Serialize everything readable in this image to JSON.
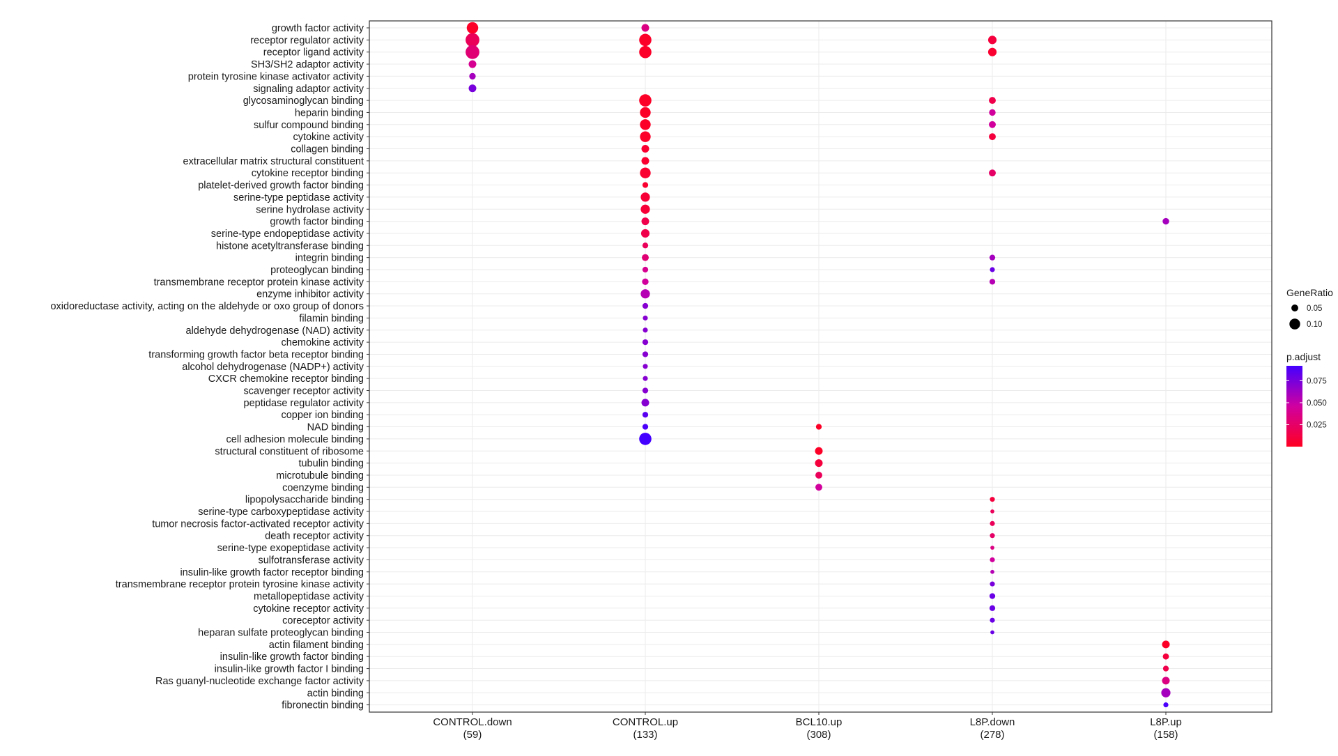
{
  "chart_data": {
    "type": "scatter",
    "x_categories": [
      {
        "label": "CONTROL.down",
        "count": "(59)"
      },
      {
        "label": "CONTROL.up",
        "count": "(133)"
      },
      {
        "label": "BCL10.up",
        "count": "(308)"
      },
      {
        "label": "L8P.down",
        "count": "(278)"
      },
      {
        "label": "L8P.up",
        "count": "(158)"
      }
    ],
    "y_terms": [
      "growth factor activity",
      "receptor regulator activity",
      "receptor ligand activity",
      "SH3/SH2 adaptor activity",
      "protein tyrosine kinase activator activity",
      "signaling adaptor activity",
      "glycosaminoglycan binding",
      "heparin binding",
      "sulfur compound binding",
      "cytokine activity",
      "collagen binding",
      "extracellular matrix structural constituent",
      "cytokine receptor binding",
      "platelet-derived growth factor binding",
      "serine-type peptidase activity",
      "serine hydrolase activity",
      "growth factor binding",
      "serine-type endopeptidase activity",
      "histone acetyltransferase binding",
      "integrin binding",
      "proteoglycan binding",
      "transmembrane receptor protein kinase activity",
      "enzyme inhibitor activity",
      "oxidoreductase activity, acting on the aldehyde or oxo group of donors",
      "filamin binding",
      "aldehyde dehydrogenase (NAD) activity",
      "chemokine activity",
      "transforming growth factor beta receptor binding",
      "alcohol dehydrogenase (NADP+) activity",
      "CXCR chemokine receptor binding",
      "scavenger receptor activity",
      "peptidase regulator activity",
      "copper ion binding",
      "NAD binding",
      "cell adhesion molecule binding",
      "structural constituent of ribosome",
      "tubulin binding",
      "microtubule binding",
      "coenzyme binding",
      "lipopolysaccharide binding",
      "serine-type carboxypeptidase activity",
      "tumor necrosis factor-activated receptor activity",
      "death receptor activity",
      "serine-type exopeptidase activity",
      "sulfotransferase activity",
      "insulin-like growth factor receptor binding",
      "transmembrane receptor protein tyrosine kinase activity",
      "metallopeptidase activity",
      "cytokine receptor activity",
      "coreceptor activity",
      "heparan sulfate proteoglycan binding",
      "actin filament binding",
      "insulin-like growth factor binding",
      "insulin-like growth factor I binding",
      "Ras guanyl-nucleotide exchange factor activity",
      "actin binding",
      "fibronectin binding"
    ],
    "points": [
      {
        "x": 0,
        "y": 0,
        "gene_ratio": 0.11,
        "p_adjust": 0.002
      },
      {
        "x": 0,
        "y": 1,
        "gene_ratio": 0.14,
        "p_adjust": 0.02
      },
      {
        "x": 0,
        "y": 2,
        "gene_ratio": 0.14,
        "p_adjust": 0.03
      },
      {
        "x": 0,
        "y": 3,
        "gene_ratio": 0.06,
        "p_adjust": 0.04
      },
      {
        "x": 0,
        "y": 4,
        "gene_ratio": 0.045,
        "p_adjust": 0.06
      },
      {
        "x": 0,
        "y": 5,
        "gene_ratio": 0.06,
        "p_adjust": 0.075
      },
      {
        "x": 1,
        "y": 0,
        "gene_ratio": 0.06,
        "p_adjust": 0.035
      },
      {
        "x": 1,
        "y": 1,
        "gene_ratio": 0.12,
        "p_adjust": 0.003
      },
      {
        "x": 1,
        "y": 2,
        "gene_ratio": 0.12,
        "p_adjust": 0.003
      },
      {
        "x": 1,
        "y": 6,
        "gene_ratio": 0.12,
        "p_adjust": 0.002
      },
      {
        "x": 1,
        "y": 7,
        "gene_ratio": 0.1,
        "p_adjust": 0.002
      },
      {
        "x": 1,
        "y": 8,
        "gene_ratio": 0.1,
        "p_adjust": 0.002
      },
      {
        "x": 1,
        "y": 9,
        "gene_ratio": 0.1,
        "p_adjust": 0.003
      },
      {
        "x": 1,
        "y": 10,
        "gene_ratio": 0.06,
        "p_adjust": 0.005
      },
      {
        "x": 1,
        "y": 11,
        "gene_ratio": 0.06,
        "p_adjust": 0.005
      },
      {
        "x": 1,
        "y": 12,
        "gene_ratio": 0.1,
        "p_adjust": 0.005
      },
      {
        "x": 1,
        "y": 13,
        "gene_ratio": 0.035,
        "p_adjust": 0.005
      },
      {
        "x": 1,
        "y": 14,
        "gene_ratio": 0.08,
        "p_adjust": 0.008
      },
      {
        "x": 1,
        "y": 15,
        "gene_ratio": 0.08,
        "p_adjust": 0.008
      },
      {
        "x": 1,
        "y": 16,
        "gene_ratio": 0.06,
        "p_adjust": 0.015
      },
      {
        "x": 1,
        "y": 17,
        "gene_ratio": 0.07,
        "p_adjust": 0.015
      },
      {
        "x": 1,
        "y": 18,
        "gene_ratio": 0.035,
        "p_adjust": 0.02
      },
      {
        "x": 1,
        "y": 19,
        "gene_ratio": 0.05,
        "p_adjust": 0.03
      },
      {
        "x": 1,
        "y": 20,
        "gene_ratio": 0.035,
        "p_adjust": 0.04
      },
      {
        "x": 1,
        "y": 21,
        "gene_ratio": 0.045,
        "p_adjust": 0.045
      },
      {
        "x": 1,
        "y": 22,
        "gene_ratio": 0.08,
        "p_adjust": 0.055
      },
      {
        "x": 1,
        "y": 23,
        "gene_ratio": 0.035,
        "p_adjust": 0.07
      },
      {
        "x": 1,
        "y": 24,
        "gene_ratio": 0.025,
        "p_adjust": 0.07
      },
      {
        "x": 1,
        "y": 25,
        "gene_ratio": 0.025,
        "p_adjust": 0.07
      },
      {
        "x": 1,
        "y": 26,
        "gene_ratio": 0.035,
        "p_adjust": 0.07
      },
      {
        "x": 1,
        "y": 27,
        "gene_ratio": 0.035,
        "p_adjust": 0.07
      },
      {
        "x": 1,
        "y": 28,
        "gene_ratio": 0.025,
        "p_adjust": 0.07
      },
      {
        "x": 1,
        "y": 29,
        "gene_ratio": 0.025,
        "p_adjust": 0.07
      },
      {
        "x": 1,
        "y": 30,
        "gene_ratio": 0.035,
        "p_adjust": 0.07
      },
      {
        "x": 1,
        "y": 31,
        "gene_ratio": 0.06,
        "p_adjust": 0.07
      },
      {
        "x": 1,
        "y": 32,
        "gene_ratio": 0.035,
        "p_adjust": 0.085
      },
      {
        "x": 1,
        "y": 33,
        "gene_ratio": 0.035,
        "p_adjust": 0.09
      },
      {
        "x": 1,
        "y": 34,
        "gene_ratio": 0.12,
        "p_adjust": 0.092
      },
      {
        "x": 2,
        "y": 33,
        "gene_ratio": 0.035,
        "p_adjust": 0.002
      },
      {
        "x": 2,
        "y": 35,
        "gene_ratio": 0.06,
        "p_adjust": 0.002
      },
      {
        "x": 2,
        "y": 36,
        "gene_ratio": 0.06,
        "p_adjust": 0.01
      },
      {
        "x": 2,
        "y": 37,
        "gene_ratio": 0.05,
        "p_adjust": 0.02
      },
      {
        "x": 2,
        "y": 38,
        "gene_ratio": 0.05,
        "p_adjust": 0.045
      },
      {
        "x": 3,
        "y": 1,
        "gene_ratio": 0.07,
        "p_adjust": 0.01
      },
      {
        "x": 3,
        "y": 2,
        "gene_ratio": 0.07,
        "p_adjust": 0.005
      },
      {
        "x": 3,
        "y": 6,
        "gene_ratio": 0.05,
        "p_adjust": 0.015
      },
      {
        "x": 3,
        "y": 7,
        "gene_ratio": 0.045,
        "p_adjust": 0.045
      },
      {
        "x": 3,
        "y": 8,
        "gene_ratio": 0.05,
        "p_adjust": 0.045
      },
      {
        "x": 3,
        "y": 9,
        "gene_ratio": 0.05,
        "p_adjust": 0.01
      },
      {
        "x": 3,
        "y": 12,
        "gene_ratio": 0.05,
        "p_adjust": 0.025
      },
      {
        "x": 3,
        "y": 19,
        "gene_ratio": 0.035,
        "p_adjust": 0.06
      },
      {
        "x": 3,
        "y": 20,
        "gene_ratio": 0.025,
        "p_adjust": 0.08
      },
      {
        "x": 3,
        "y": 21,
        "gene_ratio": 0.035,
        "p_adjust": 0.055
      },
      {
        "x": 3,
        "y": 39,
        "gene_ratio": 0.025,
        "p_adjust": 0.01
      },
      {
        "x": 3,
        "y": 40,
        "gene_ratio": 0.012,
        "p_adjust": 0.02
      },
      {
        "x": 3,
        "y": 41,
        "gene_ratio": 0.025,
        "p_adjust": 0.02
      },
      {
        "x": 3,
        "y": 42,
        "gene_ratio": 0.025,
        "p_adjust": 0.025
      },
      {
        "x": 3,
        "y": 43,
        "gene_ratio": 0.012,
        "p_adjust": 0.035
      },
      {
        "x": 3,
        "y": 44,
        "gene_ratio": 0.025,
        "p_adjust": 0.045
      },
      {
        "x": 3,
        "y": 45,
        "gene_ratio": 0.012,
        "p_adjust": 0.055
      },
      {
        "x": 3,
        "y": 46,
        "gene_ratio": 0.025,
        "p_adjust": 0.075
      },
      {
        "x": 3,
        "y": 47,
        "gene_ratio": 0.035,
        "p_adjust": 0.08
      },
      {
        "x": 3,
        "y": 48,
        "gene_ratio": 0.035,
        "p_adjust": 0.08
      },
      {
        "x": 3,
        "y": 49,
        "gene_ratio": 0.025,
        "p_adjust": 0.08
      },
      {
        "x": 3,
        "y": 50,
        "gene_ratio": 0.012,
        "p_adjust": 0.08
      },
      {
        "x": 4,
        "y": 16,
        "gene_ratio": 0.045,
        "p_adjust": 0.06
      },
      {
        "x": 4,
        "y": 51,
        "gene_ratio": 0.06,
        "p_adjust": 0.002
      },
      {
        "x": 4,
        "y": 52,
        "gene_ratio": 0.04,
        "p_adjust": 0.01
      },
      {
        "x": 4,
        "y": 53,
        "gene_ratio": 0.035,
        "p_adjust": 0.015
      },
      {
        "x": 4,
        "y": 54,
        "gene_ratio": 0.06,
        "p_adjust": 0.035
      },
      {
        "x": 4,
        "y": 55,
        "gene_ratio": 0.08,
        "p_adjust": 0.06
      },
      {
        "x": 4,
        "y": 56,
        "gene_ratio": 0.025,
        "p_adjust": 0.09
      }
    ],
    "size_legend": {
      "title": "GeneRatio",
      "entries": [
        0.05,
        0.1
      ],
      "labels": [
        "0.05",
        "0.10"
      ]
    },
    "color_legend": {
      "title": "p.adjust",
      "ticks": [
        0.025,
        0.05,
        0.075
      ],
      "labels": [
        "0.025",
        "0.050",
        "0.075"
      ],
      "range": [
        0.0,
        0.092
      ]
    },
    "colors": {
      "low": "#ff0022",
      "high": "#4400ff",
      "grid": "#ebebeb",
      "panel_border": "#333333"
    },
    "grid": true,
    "legend_position": "right"
  }
}
